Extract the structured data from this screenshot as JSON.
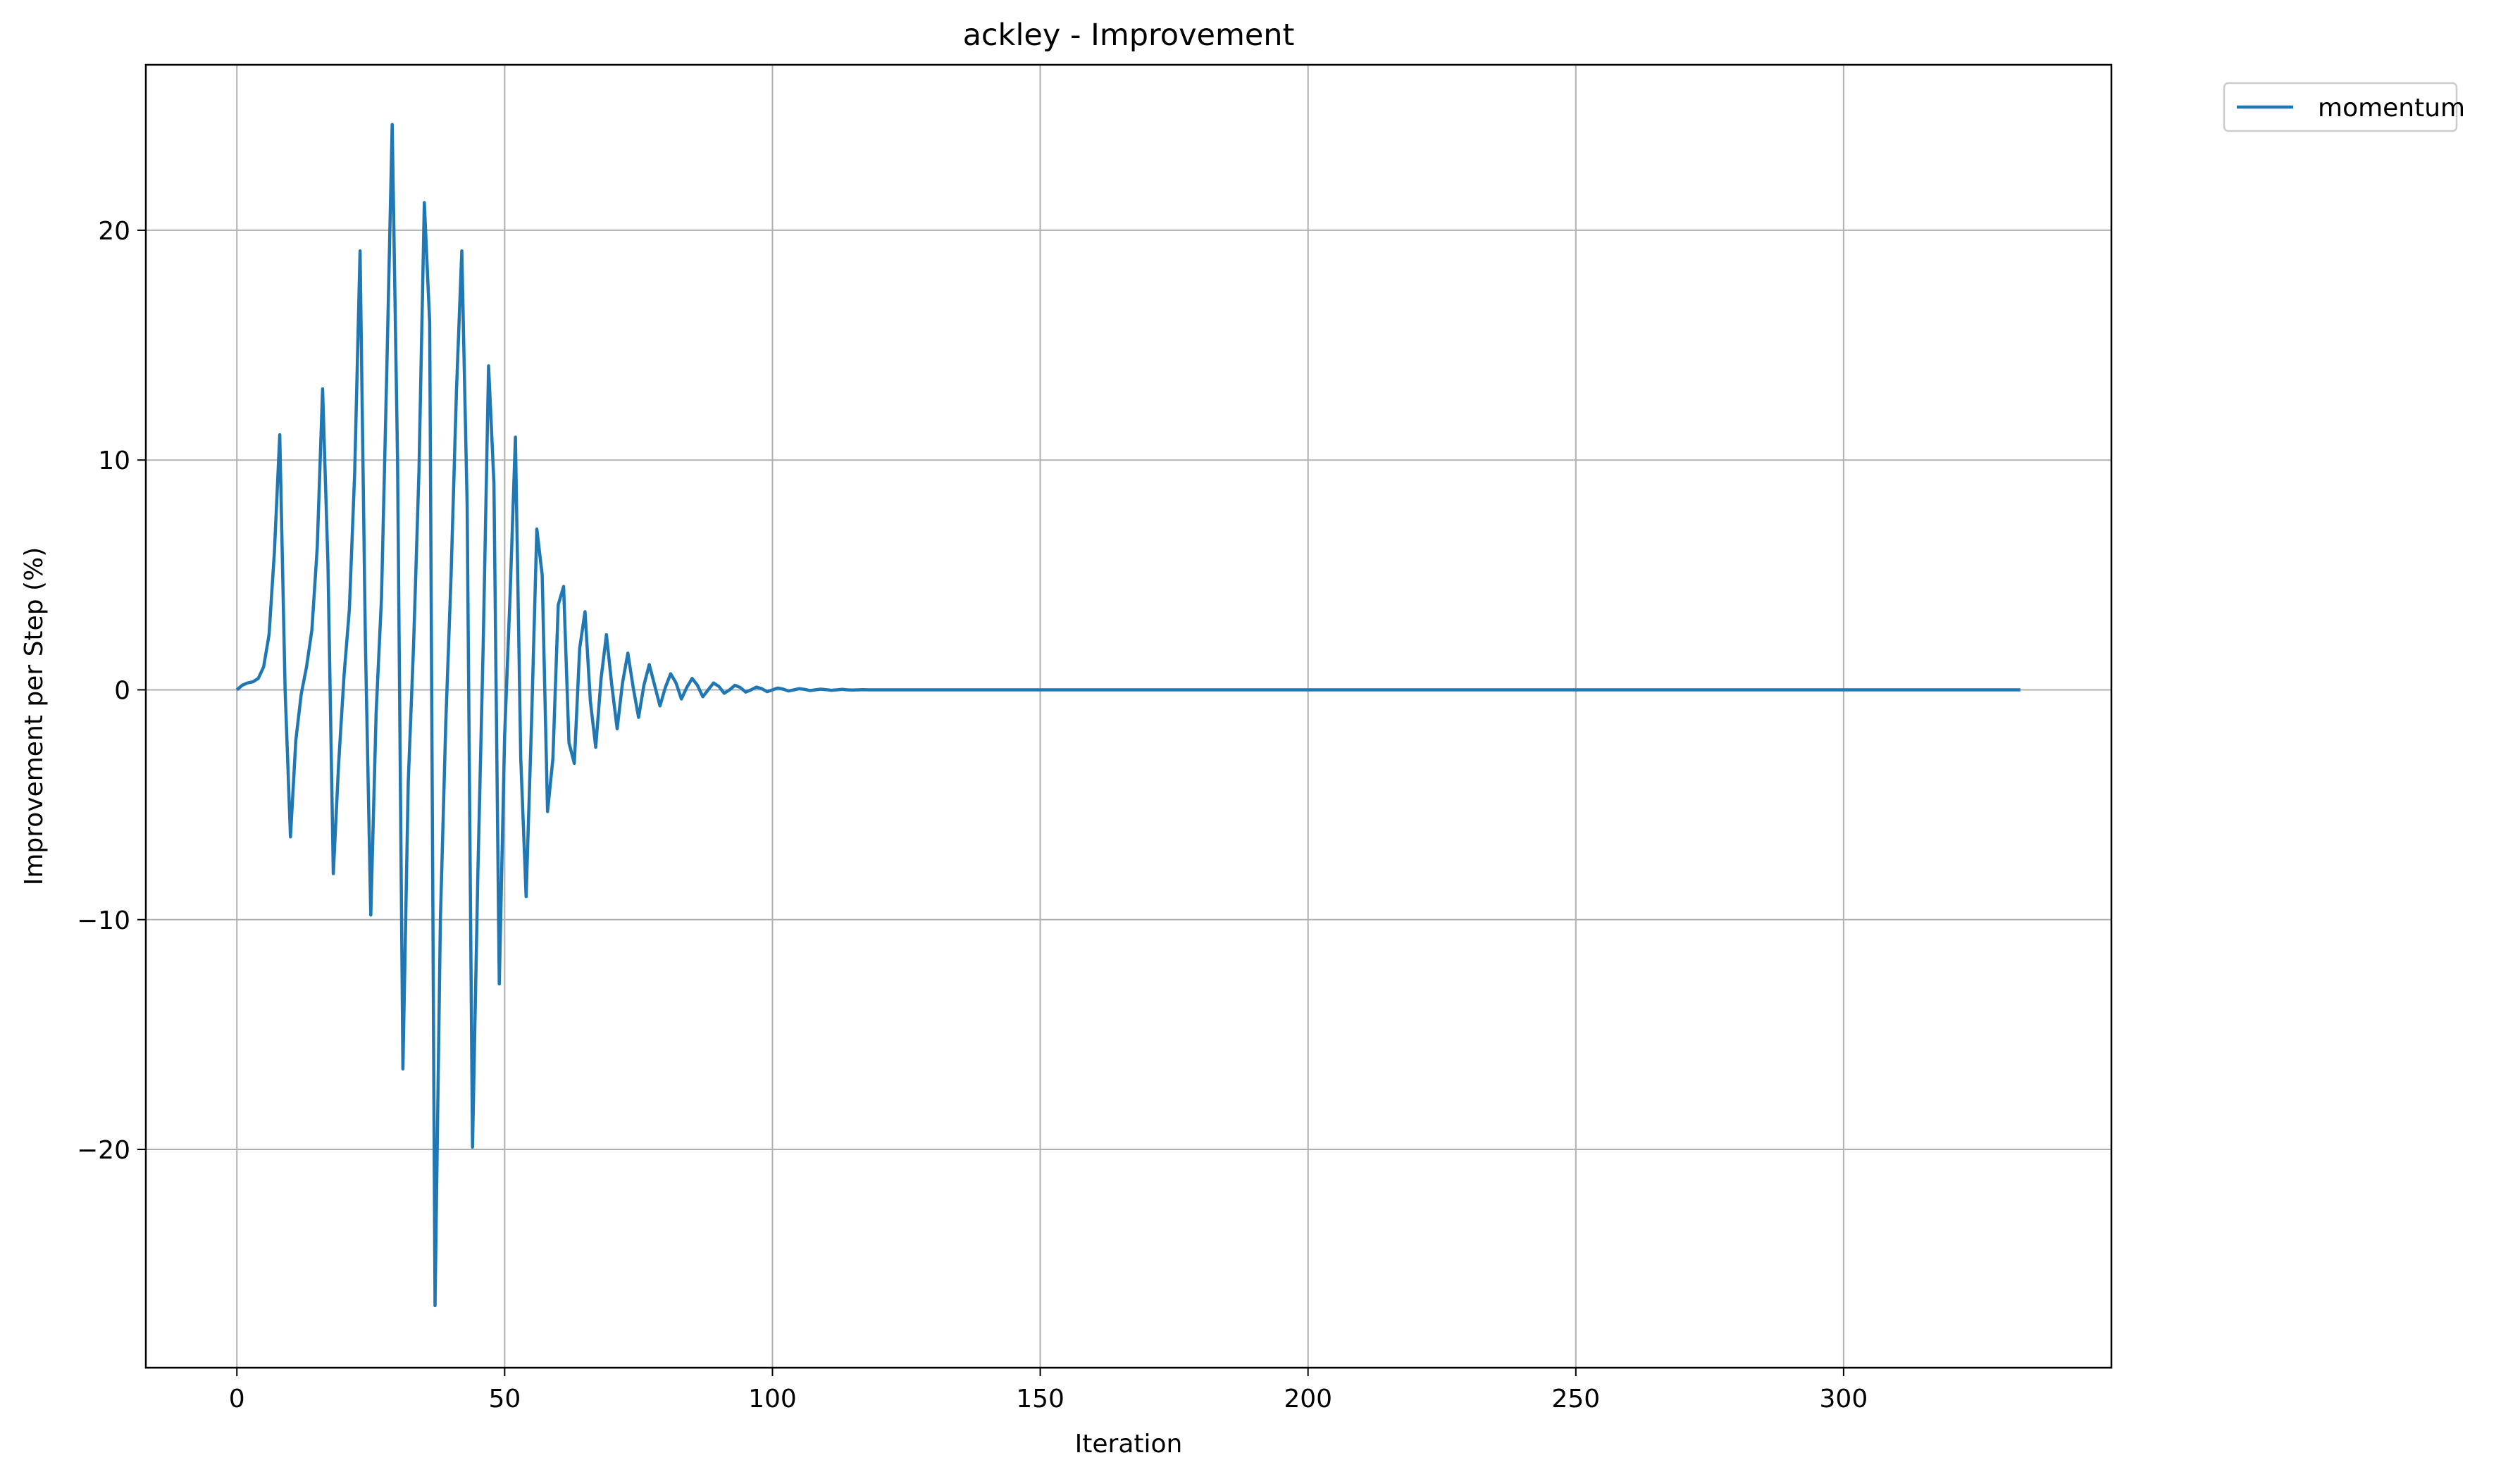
{
  "chart_data": {
    "type": "line",
    "title": "ackley - Improvement",
    "xlabel": "Iteration",
    "ylabel": "Improvement per Step (%)",
    "xlim": [
      -17,
      350
    ],
    "ylim": [
      -29.5,
      27.2
    ],
    "xticks": [
      0,
      50,
      100,
      150,
      200,
      250,
      300
    ],
    "yticks": [
      -20,
      -10,
      0,
      10,
      20
    ],
    "ytick_labels": [
      "−20",
      "−10",
      "0",
      "10",
      "20"
    ],
    "grid": true,
    "legend_position": "outside-top-right",
    "series": [
      {
        "name": "momentum",
        "color": "#1f77b4",
        "x": [
          0,
          1,
          2,
          3,
          4,
          5,
          6,
          7,
          8,
          9,
          10,
          11,
          12,
          13,
          14,
          15,
          16,
          17,
          18,
          19,
          20,
          21,
          22,
          23,
          24,
          25,
          26,
          27,
          28,
          29,
          30,
          31,
          32,
          33,
          34,
          35,
          36,
          37,
          38,
          39,
          40,
          41,
          42,
          43,
          44,
          45,
          46,
          47,
          48,
          49,
          50,
          51,
          52,
          53,
          54,
          55,
          56,
          57,
          58,
          59,
          60,
          61,
          62,
          63,
          64,
          65,
          66,
          67,
          68,
          69,
          70,
          71,
          72,
          73,
          74,
          75,
          76,
          77,
          78,
          79,
          80,
          81,
          82,
          83,
          84,
          85,
          86,
          87,
          88,
          89,
          90,
          91,
          92,
          93,
          94,
          95,
          96,
          97,
          98,
          99,
          100,
          101,
          102,
          103,
          104,
          105,
          106,
          107,
          108,
          109,
          110,
          111,
          112,
          113,
          114,
          115,
          116,
          117,
          118,
          119,
          120,
          125,
          130,
          140,
          150,
          200,
          250,
          300,
          333
        ],
        "y": [
          0,
          0.2,
          0.3,
          0.35,
          0.5,
          1.0,
          2.4,
          6.0,
          11.1,
          0.0,
          -6.4,
          -2.2,
          -0.2,
          1.0,
          2.6,
          6.2,
          13.1,
          5.5,
          -8.0,
          -3.2,
          0.6,
          3.5,
          9.5,
          19.1,
          2.0,
          -9.8,
          -1.0,
          4.0,
          14.0,
          24.6,
          10.0,
          -16.5,
          -4.0,
          2.0,
          9.5,
          21.2,
          16.0,
          -26.8,
          -10.0,
          -1.5,
          5.0,
          13.0,
          19.1,
          8.0,
          -19.9,
          -8.0,
          2.0,
          14.1,
          9.0,
          -12.8,
          -2.0,
          4.0,
          11.0,
          -3.0,
          -9.0,
          -1.5,
          7.0,
          5.0,
          -5.3,
          -3.0,
          3.7,
          4.5,
          -2.3,
          -3.2,
          1.8,
          3.4,
          -0.5,
          -2.5,
          0.5,
          2.4,
          0.2,
          -1.7,
          0.3,
          1.6,
          0.1,
          -1.2,
          0.2,
          1.1,
          0.2,
          -0.7,
          0.1,
          0.7,
          0.3,
          -0.4,
          0.1,
          0.5,
          0.2,
          -0.3,
          0,
          0.3,
          0.15,
          -0.15,
          0,
          0.2,
          0.1,
          -0.1,
          0,
          0.12,
          0.05,
          -0.08,
          0,
          0.08,
          0.03,
          -0.05,
          0,
          0.05,
          0.02,
          -0.03,
          0,
          0.03,
          0.01,
          -0.02,
          0,
          0.02,
          0,
          -0.01,
          0,
          0.01,
          0,
          0,
          0,
          0,
          0,
          0,
          0,
          0,
          0,
          0,
          0
        ]
      }
    ]
  }
}
